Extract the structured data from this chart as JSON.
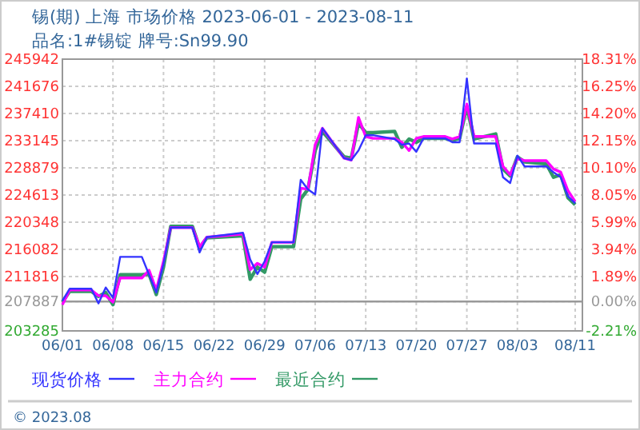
{
  "chart_data": {
    "type": "line",
    "title": "锡(期) 上海 市场价格 2023-06-01 - 2023-08-11",
    "subtitle": "品名:1#锡锭 牌号:Sn99.90",
    "x": [
      "2023-06-01",
      "2023-06-02",
      "2023-06-05",
      "2023-06-06",
      "2023-06-07",
      "2023-06-08",
      "2023-06-09",
      "2023-06-12",
      "2023-06-13",
      "2023-06-14",
      "2023-06-15",
      "2023-06-16",
      "2023-06-19",
      "2023-06-20",
      "2023-06-21",
      "2023-06-26",
      "2023-06-27",
      "2023-06-28",
      "2023-06-29",
      "2023-06-30",
      "2023-07-03",
      "2023-07-04",
      "2023-07-05",
      "2023-07-06",
      "2023-07-07",
      "2023-07-10",
      "2023-07-11",
      "2023-07-12",
      "2023-07-13",
      "2023-07-14",
      "2023-07-17",
      "2023-07-18",
      "2023-07-19",
      "2023-07-20",
      "2023-07-21",
      "2023-07-24",
      "2023-07-25",
      "2023-07-26",
      "2023-07-27",
      "2023-07-28",
      "2023-07-31",
      "2023-08-01",
      "2023-08-02",
      "2023-08-03",
      "2023-08-04",
      "2023-08-07",
      "2023-08-08",
      "2023-08-09",
      "2023-08-10",
      "2023-08-11"
    ],
    "series": [
      {
        "name": "现货价格",
        "color": "#3333ff",
        "values": [
          208000,
          209900,
          209900,
          207600,
          210100,
          208500,
          214900,
          214900,
          212100,
          209300,
          213800,
          219500,
          219500,
          215600,
          218000,
          218700,
          214500,
          212200,
          214200,
          217200,
          217200,
          227000,
          225500,
          224700,
          235100,
          230400,
          230100,
          231600,
          234000,
          234000,
          233400,
          232500,
          232700,
          231400,
          233500,
          233500,
          232900,
          232900,
          242900,
          232700,
          232700,
          227400,
          226500,
          230800,
          229100,
          229100,
          228200,
          227400,
          224400,
          223300
        ]
      },
      {
        "name": "主力合约",
        "color": "#ff00ff",
        "values": [
          207400,
          209700,
          209700,
          208800,
          208800,
          207800,
          211600,
          211600,
          212800,
          209700,
          214200,
          219500,
          219500,
          216500,
          218000,
          218500,
          212900,
          213900,
          213300,
          217200,
          217200,
          225700,
          225500,
          232500,
          235100,
          230400,
          230100,
          236800,
          233800,
          233500,
          233500,
          232900,
          231600,
          233500,
          233800,
          233800,
          233400,
          233800,
          238900,
          233800,
          233800,
          229100,
          227800,
          230400,
          230000,
          230000,
          228700,
          228200,
          225300,
          223600
        ]
      },
      {
        "name": "最近合约",
        "color": "#339966",
        "values": [
          207800,
          209500,
          209500,
          208700,
          209300,
          207400,
          212100,
          212100,
          212200,
          209000,
          213300,
          219700,
          219700,
          216300,
          217900,
          218200,
          211400,
          213300,
          212500,
          216500,
          216500,
          224000,
          225500,
          231600,
          234600,
          230600,
          230400,
          235900,
          234400,
          234400,
          234600,
          232100,
          233400,
          232900,
          233500,
          233500,
          233200,
          233500,
          238500,
          233400,
          234200,
          228700,
          227600,
          230600,
          229800,
          229500,
          227400,
          227800,
          224200,
          223100
        ]
      }
    ],
    "xlim": [
      "2023-06-01",
      "2023-08-12"
    ],
    "xticks": [
      {
        "value": "2023-06-01",
        "label": "06/01"
      },
      {
        "value": "2023-06-08",
        "label": "06/08"
      },
      {
        "value": "2023-06-15",
        "label": "06/15"
      },
      {
        "value": "2023-06-22",
        "label": "06/22"
      },
      {
        "value": "2023-06-29",
        "label": "06/29"
      },
      {
        "value": "2023-07-06",
        "label": "07/06"
      },
      {
        "value": "2023-07-13",
        "label": "07/13"
      },
      {
        "value": "2023-07-20",
        "label": "07/20"
      },
      {
        "value": "2023-07-27",
        "label": "07/27"
      },
      {
        "value": "2023-08-03",
        "label": "08/03"
      },
      {
        "value": "2023-08-11",
        "label": "08/11"
      }
    ],
    "ylim": [
      203285,
      245942
    ],
    "yticks": [
      245942,
      241676,
      237410,
      233145,
      228879,
      224613,
      220348,
      216082,
      211816,
      207887,
      203285
    ],
    "y2lim": [
      -2.21,
      18.31
    ],
    "y2ticks": [
      {
        "value": 18.31,
        "label": "18.31%"
      },
      {
        "value": 16.25,
        "label": "16.25%"
      },
      {
        "value": 14.2,
        "label": "14.20%"
      },
      {
        "value": 12.15,
        "label": "12.15%"
      },
      {
        "value": 10.1,
        "label": "10.10%"
      },
      {
        "value": 8.05,
        "label": "8.05%"
      },
      {
        "value": 5.99,
        "label": "5.99%"
      },
      {
        "value": 3.94,
        "label": "3.94%"
      },
      {
        "value": 1.89,
        "label": "1.89%"
      },
      {
        "value": 0,
        "label": "0.00%"
      },
      {
        "value": -2.21,
        "label": "-2.21%"
      }
    ],
    "ref_lines": [
      {
        "axis": "y",
        "value": 207887,
        "color": "#999999"
      }
    ],
    "grid": true,
    "legend": "bottom",
    "annotations": [
      "© 2023.08"
    ]
  }
}
